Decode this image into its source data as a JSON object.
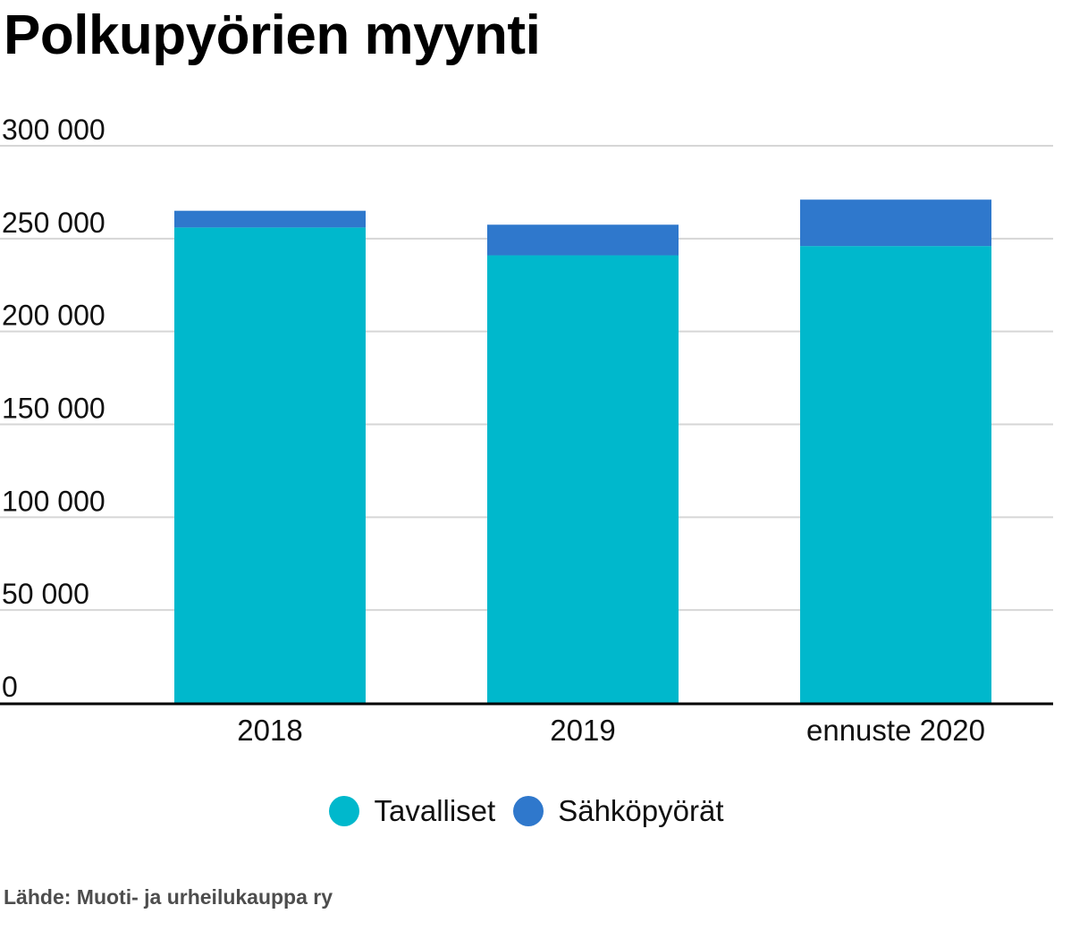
{
  "title": "Polkupyörien myynti",
  "source": "Lähde: Muoti- ja urheilukauppa ry",
  "chart_data": {
    "type": "bar",
    "stacked": true,
    "categories": [
      "2018",
      "2019",
      "ennuste 2020"
    ],
    "series": [
      {
        "name": "Tavalliset",
        "color": "#00b8cc",
        "values": [
          256000,
          241000,
          246000
        ]
      },
      {
        "name": "Sähköpyörät",
        "color": "#2f78cc",
        "values": [
          9000,
          16500,
          25000
        ]
      }
    ],
    "ylim": [
      0,
      300000
    ],
    "yticks": [
      0,
      50000,
      100000,
      150000,
      200000,
      250000,
      300000
    ],
    "ytick_labels": [
      "0",
      "50 000",
      "100 000",
      "150 000",
      "200 000",
      "250 000",
      "300 000"
    ],
    "grid": true,
    "legend_position": "bottom"
  }
}
